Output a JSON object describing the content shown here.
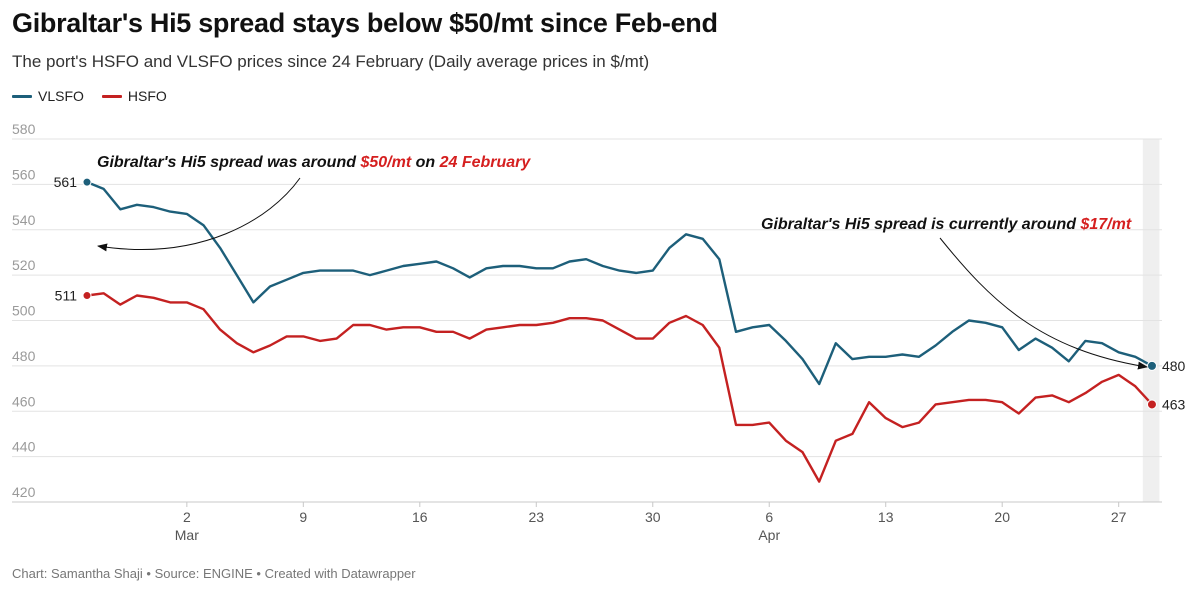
{
  "header": {
    "title": "Gibraltar's Hi5 spread stays below $50/mt since Feb-end",
    "subtitle": "The port's HSFO and VLSFO prices since 24 February (Daily average prices in $/mt)"
  },
  "legend": [
    {
      "name": "VLSFO",
      "color": "#1d5f7a"
    },
    {
      "name": "HSFO",
      "color": "#c42121"
    }
  ],
  "footer": "Chart: Samantha Shaji • Source: ENGINE • Created with Datawrapper",
  "annotations": {
    "first": {
      "pre": "Gibraltar's Hi5 spread was around ",
      "v1": "$50/mt",
      "mid": " on ",
      "v2": "24 February"
    },
    "second": {
      "pre": "Gibraltar's Hi5 spread is currently around ",
      "v1": "$17/mt"
    }
  },
  "chart_data": {
    "type": "line",
    "title": "Gibraltar's Hi5 spread stays below $50/mt since Feb-end",
    "ylim": [
      420,
      580
    ],
    "yticks": [
      420,
      440,
      460,
      480,
      500,
      520,
      540,
      560,
      580
    ],
    "x_start": "2022-02-24",
    "xticks": [
      {
        "date": "2022-03-02",
        "label": "2",
        "sub": "Mar"
      },
      {
        "date": "2022-03-09",
        "label": "9",
        "sub": ""
      },
      {
        "date": "2022-03-16",
        "label": "16",
        "sub": ""
      },
      {
        "date": "2022-03-23",
        "label": "23",
        "sub": ""
      },
      {
        "date": "2022-03-30",
        "label": "30",
        "sub": ""
      },
      {
        "date": "2022-04-06",
        "label": "6",
        "sub": "Apr"
      },
      {
        "date": "2022-04-13",
        "label": "13",
        "sub": ""
      },
      {
        "date": "2022-04-20",
        "label": "20",
        "sub": ""
      },
      {
        "date": "2022-04-27",
        "label": "27",
        "sub": ""
      }
    ],
    "highlight_range": [
      "2022-04-28",
      "2022-04-29"
    ],
    "grid": true,
    "legend_position": "top-left",
    "series": [
      {
        "name": "VLSFO",
        "color": "#1d5f7a",
        "start_label": "561",
        "end_label": "480",
        "points": [
          [
            "2022-02-24",
            561
          ],
          [
            "2022-02-25",
            558
          ],
          [
            "2022-02-26",
            549
          ],
          [
            "2022-02-27",
            551
          ],
          [
            "2022-02-28",
            550
          ],
          [
            "2022-03-01",
            548
          ],
          [
            "2022-03-02",
            547
          ],
          [
            "2022-03-03",
            542
          ],
          [
            "2022-03-04",
            532
          ],
          [
            "2022-03-05",
            520
          ],
          [
            "2022-03-06",
            508
          ],
          [
            "2022-03-07",
            515
          ],
          [
            "2022-03-08",
            518
          ],
          [
            "2022-03-09",
            521
          ],
          [
            "2022-03-10",
            522
          ],
          [
            "2022-03-11",
            522
          ],
          [
            "2022-03-12",
            522
          ],
          [
            "2022-03-13",
            520
          ],
          [
            "2022-03-14",
            522
          ],
          [
            "2022-03-15",
            524
          ],
          [
            "2022-03-16",
            525
          ],
          [
            "2022-03-17",
            526
          ],
          [
            "2022-03-18",
            523
          ],
          [
            "2022-03-19",
            519
          ],
          [
            "2022-03-20",
            523
          ],
          [
            "2022-03-21",
            524
          ],
          [
            "2022-03-22",
            524
          ],
          [
            "2022-03-23",
            523
          ],
          [
            "2022-03-24",
            523
          ],
          [
            "2022-03-25",
            526
          ],
          [
            "2022-03-26",
            527
          ],
          [
            "2022-03-27",
            524
          ],
          [
            "2022-03-28",
            522
          ],
          [
            "2022-03-29",
            521
          ],
          [
            "2022-03-30",
            522
          ],
          [
            "2022-03-31",
            532
          ],
          [
            "2022-04-01",
            538
          ],
          [
            "2022-04-02",
            536
          ],
          [
            "2022-04-03",
            527
          ],
          [
            "2022-04-04",
            495
          ],
          [
            "2022-04-05",
            497
          ],
          [
            "2022-04-06",
            498
          ],
          [
            "2022-04-07",
            491
          ],
          [
            "2022-04-08",
            483
          ],
          [
            "2022-04-09",
            472
          ],
          [
            "2022-04-10",
            490
          ],
          [
            "2022-04-11",
            483
          ],
          [
            "2022-04-12",
            484
          ],
          [
            "2022-04-13",
            484
          ],
          [
            "2022-04-14",
            485
          ],
          [
            "2022-04-15",
            484
          ],
          [
            "2022-04-16",
            489
          ],
          [
            "2022-04-17",
            495
          ],
          [
            "2022-04-18",
            500
          ],
          [
            "2022-04-19",
            499
          ],
          [
            "2022-04-20",
            497
          ],
          [
            "2022-04-21",
            487
          ],
          [
            "2022-04-22",
            492
          ],
          [
            "2022-04-23",
            488
          ],
          [
            "2022-04-24",
            482
          ],
          [
            "2022-04-25",
            491
          ],
          [
            "2022-04-26",
            490
          ],
          [
            "2022-04-27",
            486
          ],
          [
            "2022-04-28",
            484
          ],
          [
            "2022-04-29",
            480
          ]
        ]
      },
      {
        "name": "HSFO",
        "color": "#c42121",
        "start_label": "511",
        "end_label": "463",
        "points": [
          [
            "2022-02-24",
            511
          ],
          [
            "2022-02-25",
            512
          ],
          [
            "2022-02-26",
            507
          ],
          [
            "2022-02-27",
            511
          ],
          [
            "2022-02-28",
            510
          ],
          [
            "2022-03-01",
            508
          ],
          [
            "2022-03-02",
            508
          ],
          [
            "2022-03-03",
            505
          ],
          [
            "2022-03-04",
            496
          ],
          [
            "2022-03-05",
            490
          ],
          [
            "2022-03-06",
            486
          ],
          [
            "2022-03-07",
            489
          ],
          [
            "2022-03-08",
            493
          ],
          [
            "2022-03-09",
            493
          ],
          [
            "2022-03-10",
            491
          ],
          [
            "2022-03-11",
            492
          ],
          [
            "2022-03-12",
            498
          ],
          [
            "2022-03-13",
            498
          ],
          [
            "2022-03-14",
            496
          ],
          [
            "2022-03-15",
            497
          ],
          [
            "2022-03-16",
            497
          ],
          [
            "2022-03-17",
            495
          ],
          [
            "2022-03-18",
            495
          ],
          [
            "2022-03-19",
            492
          ],
          [
            "2022-03-20",
            496
          ],
          [
            "2022-03-21",
            497
          ],
          [
            "2022-03-22",
            498
          ],
          [
            "2022-03-23",
            498
          ],
          [
            "2022-03-24",
            499
          ],
          [
            "2022-03-25",
            501
          ],
          [
            "2022-03-26",
            501
          ],
          [
            "2022-03-27",
            500
          ],
          [
            "2022-03-28",
            496
          ],
          [
            "2022-03-29",
            492
          ],
          [
            "2022-03-30",
            492
          ],
          [
            "2022-03-31",
            499
          ],
          [
            "2022-04-01",
            502
          ],
          [
            "2022-04-02",
            498
          ],
          [
            "2022-04-03",
            488
          ],
          [
            "2022-04-04",
            454
          ],
          [
            "2022-04-05",
            454
          ],
          [
            "2022-04-06",
            455
          ],
          [
            "2022-04-07",
            447
          ],
          [
            "2022-04-08",
            442
          ],
          [
            "2022-04-09",
            429
          ],
          [
            "2022-04-10",
            447
          ],
          [
            "2022-04-11",
            450
          ],
          [
            "2022-04-12",
            464
          ],
          [
            "2022-04-13",
            457
          ],
          [
            "2022-04-14",
            453
          ],
          [
            "2022-04-15",
            455
          ],
          [
            "2022-04-16",
            463
          ],
          [
            "2022-04-17",
            464
          ],
          [
            "2022-04-18",
            465
          ],
          [
            "2022-04-19",
            465
          ],
          [
            "2022-04-20",
            464
          ],
          [
            "2022-04-21",
            459
          ],
          [
            "2022-04-22",
            466
          ],
          [
            "2022-04-23",
            467
          ],
          [
            "2022-04-24",
            464
          ],
          [
            "2022-04-25",
            468
          ],
          [
            "2022-04-26",
            473
          ],
          [
            "2022-04-27",
            476
          ],
          [
            "2022-04-28",
            471
          ],
          [
            "2022-04-29",
            463
          ]
        ]
      }
    ]
  }
}
